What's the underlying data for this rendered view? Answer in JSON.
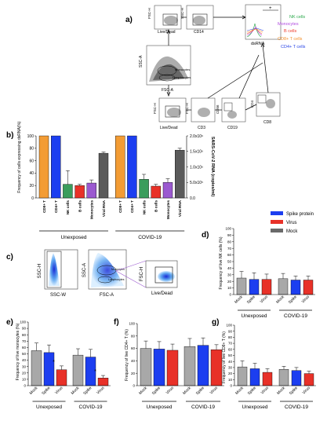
{
  "colors": {
    "orange": "#f39c34",
    "blue_bar": "#1c3ef0",
    "green": "#3a9d5c",
    "red": "#e83128",
    "purple": "#9b59d0",
    "dark_gray": "#5a5a5a",
    "gray": "#a8a8a8",
    "nk_text": "#2aa84a",
    "mono_text": "#b04ae0",
    "bcell_text": "#ee3b2b",
    "cd8_text": "#f2902b",
    "cd4_text": "#2b46e6"
  },
  "panel_a": {
    "label": "a)",
    "gate_labels": {
      "fsc_h_1": "FSC-H",
      "livedead_1": "Live/Dead",
      "ssc_h_1": "SSC-H",
      "cd14": "CD14",
      "ssc_a": "SSC-A",
      "fsc_a": "FSC-A",
      "monocytes": "Monocytes",
      "lymphocytes": "Lymphocytes",
      "fsc_h_2": "FSC-H",
      "livedead_2": "Live/Dead",
      "fsc_h_3": "FSC-H",
      "cd3": "CD3",
      "cd56": "CD56",
      "cd19": "CD19",
      "cd4": "CD4",
      "cd8": "CD8",
      "dsrna": "dsRNA",
      "plus": "+"
    },
    "histogram_legend": [
      "NK cells",
      "Monocytes",
      "B cells",
      "CD8+ T cells",
      "CD4+ T cells"
    ]
  },
  "panel_b": {
    "label": "b)",
    "ylabel_left": "Frequency of cells expressing dsRNA(%)",
    "ylabel_right": "SARS-CoV-2 RNA (copies/ml)",
    "yticks_left": [
      "0",
      "20",
      "40",
      "60",
      "80",
      "100"
    ],
    "yticks_right": [
      "0.0",
      "5.0x10⁵",
      "1.0x10⁶",
      "1.5x10⁶",
      "2.0x10⁶"
    ],
    "groups": [
      "Unexposed",
      "COVID-19"
    ]
  },
  "legend_b": [
    "Spike protein",
    "Virus",
    "Mock"
  ],
  "panel_c": {
    "label": "c)",
    "axis_labels": [
      "SSC-H",
      "SSC-W",
      "SSC-A",
      "FSC-A",
      "FSC-H",
      "Live/Dead"
    ],
    "gate_labels": [
      "Monocytes",
      "Lymphocytes"
    ]
  },
  "panel_d": {
    "label": "d)",
    "ylabel": "Frequency of live NK cells (%)"
  },
  "panel_e": {
    "label": "e)",
    "ylabel": "Frequency of live monocytes (%)",
    "star": "*"
  },
  "panel_f": {
    "label": "f)",
    "ylabel": "Frequency of live CD4+ T (%)"
  },
  "panel_g": {
    "label": "g)",
    "ylabel": "Frequency of live CD8+ T (%)"
  },
  "chart_data": [
    {
      "id": "b",
      "type": "bar",
      "categories": [
        "CD8+ T",
        "CD4+ T",
        "NK cells",
        "B cells",
        "Monocytes",
        "Viral RNA",
        "CD8+ T",
        "CD4+ T",
        "NK cells",
        "B cells",
        "Monocytes",
        "Viral RNA"
      ],
      "values": [
        100,
        100,
        22,
        20,
        24,
        72,
        100,
        100,
        30,
        19,
        25,
        77
      ],
      "errors": [
        0,
        0,
        22,
        2,
        5,
        2,
        0,
        0,
        8,
        3,
        6,
        3
      ],
      "bar_colors": [
        "orange",
        "blue_bar",
        "green",
        "red",
        "purple",
        "dark_gray",
        "orange",
        "blue_bar",
        "green",
        "red",
        "purple",
        "dark_gray"
      ],
      "ylim": [
        0,
        100
      ],
      "group_labels": [
        "Unexposed",
        "COVID-19"
      ]
    },
    {
      "id": "d",
      "type": "bar",
      "categories": [
        "Mock",
        "Spike",
        "Virus",
        "Mock",
        "Spike",
        "Virus"
      ],
      "values": [
        25,
        23,
        23,
        24,
        22,
        22
      ],
      "errors": [
        10,
        10,
        8,
        8,
        6,
        6
      ],
      "ylim": [
        0,
        100
      ],
      "yticks": [
        0,
        10,
        20,
        30,
        40,
        50,
        60,
        70,
        80,
        90,
        100
      ],
      "group_labels": [
        "Unexposed",
        "COVID-19"
      ]
    },
    {
      "id": "e",
      "type": "bar",
      "categories": [
        "Mock",
        "Spike",
        "Virus",
        "Mock",
        "Spike",
        "Virus"
      ],
      "values": [
        55,
        52,
        25,
        48,
        45,
        12
      ],
      "errors": [
        12,
        12,
        6,
        10,
        12,
        4
      ],
      "ylim": [
        0,
        100
      ],
      "yticks": [
        0,
        10,
        20,
        30,
        40,
        50,
        60,
        70,
        80,
        90,
        100
      ],
      "group_labels": [
        "Unexposed",
        "COVID-19"
      ]
    },
    {
      "id": "f",
      "type": "bar",
      "categories": [
        "Mock",
        "Spike",
        "Virus",
        "Mock",
        "Spike",
        "Virus"
      ],
      "values": [
        60,
        59,
        57,
        63,
        65,
        58
      ],
      "errors": [
        12,
        12,
        10,
        13,
        12,
        8
      ],
      "ylim": [
        0,
        100
      ],
      "yticks": [
        0,
        20,
        40,
        60,
        80,
        100
      ],
      "group_labels": [
        "Unexposed",
        "COVID-19"
      ]
    },
    {
      "id": "g",
      "type": "bar",
      "categories": [
        "Mock",
        "Spike",
        "Virus",
        "Mock",
        "Spike",
        "Virus"
      ],
      "values": [
        31,
        28,
        22,
        27,
        25,
        20
      ],
      "errors": [
        10,
        9,
        6,
        5,
        5,
        4
      ],
      "ylim": [
        0,
        100
      ],
      "yticks": [
        0,
        10,
        20,
        30,
        40,
        50,
        60,
        70,
        80,
        90,
        100
      ],
      "group_labels": [
        "Unexposed",
        "COVID-19"
      ]
    }
  ]
}
